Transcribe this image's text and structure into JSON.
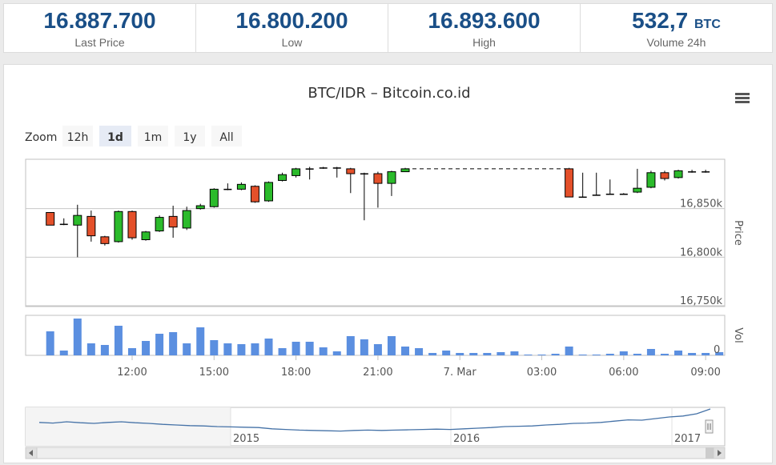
{
  "stats": [
    {
      "value": "16.887.700",
      "unit": "",
      "label": "Last Price"
    },
    {
      "value": "16.800.200",
      "unit": "",
      "label": "Low"
    },
    {
      "value": "16.893.600",
      "unit": "",
      "label": "High"
    },
    {
      "value": "532,7",
      "unit": "BTC",
      "label": "Volume 24h"
    }
  ],
  "chart": {
    "title": "BTC/IDR – Bitcoin.co.id",
    "zoom_label": "Zoom",
    "zoom_buttons": [
      "12h",
      "1d",
      "1m",
      "1y",
      "All"
    ],
    "zoom_selected": "1d",
    "price_axis_title": "Price",
    "vol_axis_title": "Vol"
  },
  "icons": {
    "menu": "hamburger-menu-icon",
    "scroll_left": "arrow-left-icon",
    "scroll_right": "arrow-right-icon"
  },
  "colors": {
    "up": "#2bbb2b",
    "down": "#e4502a",
    "accent": "#1a4f87",
    "navigator_line": "#4572a7"
  },
  "chart_data": {
    "type": "candlestick",
    "price": {
      "yticks": [
        "16,850k",
        "16,800k",
        "16,750k"
      ],
      "ytick_values": [
        16850,
        16800,
        16750
      ],
      "ylim": [
        16750,
        16900
      ],
      "grid": true,
      "candles": [
        {
          "t": 9.0,
          "o": 16846,
          "c": 16833,
          "h": 16846,
          "l": 16833
        },
        {
          "t": 9.5,
          "o": 16834,
          "c": 16834,
          "h": 16840,
          "l": 16833
        },
        {
          "t": 10.0,
          "o": 16833,
          "c": 16843,
          "h": 16854,
          "l": 16800
        },
        {
          "t": 10.5,
          "o": 16842,
          "c": 16822,
          "h": 16848,
          "l": 16816
        },
        {
          "t": 11.0,
          "o": 16821,
          "c": 16814,
          "h": 16822,
          "l": 16812
        },
        {
          "t": 11.5,
          "o": 16816,
          "c": 16847,
          "h": 16848,
          "l": 16815
        },
        {
          "t": 12.0,
          "o": 16847,
          "c": 16820,
          "h": 16848,
          "l": 16818
        },
        {
          "t": 12.5,
          "o": 16818,
          "c": 16826,
          "h": 16827,
          "l": 16817
        },
        {
          "t": 13.0,
          "o": 16827,
          "c": 16841,
          "h": 16843,
          "l": 16826
        },
        {
          "t": 13.5,
          "o": 16842,
          "c": 16831,
          "h": 16853,
          "l": 16820
        },
        {
          "t": 14.0,
          "o": 16830,
          "c": 16848,
          "h": 16852,
          "l": 16828
        },
        {
          "t": 14.5,
          "o": 16850,
          "c": 16853,
          "h": 16855,
          "l": 16849
        },
        {
          "t": 15.0,
          "o": 16852,
          "c": 16870,
          "h": 16871,
          "l": 16851
        },
        {
          "t": 15.5,
          "o": 16870,
          "c": 16870,
          "h": 16876,
          "l": 16869
        },
        {
          "t": 16.0,
          "o": 16870,
          "c": 16875,
          "h": 16877,
          "l": 16869
        },
        {
          "t": 16.5,
          "o": 16873,
          "c": 16857,
          "h": 16874,
          "l": 16856
        },
        {
          "t": 17.0,
          "o": 16858,
          "c": 16877,
          "h": 16878,
          "l": 16857
        },
        {
          "t": 17.5,
          "o": 16879,
          "c": 16885,
          "h": 16887,
          "l": 16878
        },
        {
          "t": 18.0,
          "o": 16884,
          "c": 16891,
          "h": 16892,
          "l": 16882
        },
        {
          "t": 18.5,
          "o": 16891,
          "c": 16891,
          "h": 16893,
          "l": 16880
        },
        {
          "t": 19.0,
          "o": 16892,
          "c": 16892,
          "h": 16893,
          "l": 16891
        },
        {
          "t": 19.5,
          "o": 16892,
          "c": 16892,
          "h": 16893,
          "l": 16882
        },
        {
          "t": 20.0,
          "o": 16891,
          "c": 16886,
          "h": 16892,
          "l": 16866
        },
        {
          "t": 20.5,
          "o": 16886,
          "c": 16886,
          "h": 16887,
          "l": 16838
        },
        {
          "t": 21.0,
          "o": 16886,
          "c": 16876,
          "h": 16888,
          "l": 16851
        },
        {
          "t": 21.5,
          "o": 16876,
          "c": 16888,
          "h": 16889,
          "l": 16863
        },
        {
          "t": 22.0,
          "o": 16888,
          "c": 16891,
          "h": 16892,
          "l": 16888
        },
        {
          "t": 28.0,
          "o": 16891,
          "c": 16862,
          "h": 16892,
          "l": 16862
        },
        {
          "t": 28.5,
          "o": 16862,
          "c": 16862,
          "h": 16887,
          "l": 16862
        },
        {
          "t": 29.0,
          "o": 16864,
          "c": 16864,
          "h": 16887,
          "l": 16864
        },
        {
          "t": 29.5,
          "o": 16865,
          "c": 16865,
          "h": 16880,
          "l": 16865
        },
        {
          "t": 30.0,
          "o": 16865,
          "c": 16865,
          "h": 16866,
          "l": 16865
        },
        {
          "t": 30.5,
          "o": 16867,
          "c": 16871,
          "h": 16891,
          "l": 16866
        },
        {
          "t": 31.0,
          "o": 16872,
          "c": 16887,
          "h": 16889,
          "l": 16871
        },
        {
          "t": 31.5,
          "o": 16887,
          "c": 16881,
          "h": 16889,
          "l": 16879
        },
        {
          "t": 32.0,
          "o": 16882,
          "c": 16889,
          "h": 16890,
          "l": 16881
        },
        {
          "t": 32.5,
          "o": 16888,
          "c": 16888,
          "h": 16890,
          "l": 16887
        },
        {
          "t": 33.0,
          "o": 16888,
          "c": 16888,
          "h": 16890,
          "l": 16887
        }
      ],
      "flat_line": {
        "from": 22.0,
        "to": 28.0,
        "value": 16891
      }
    },
    "volume": {
      "ytick": "0",
      "ylim": [
        0,
        50
      ],
      "bars": [
        {
          "t": 9.0,
          "v": 30
        },
        {
          "t": 9.5,
          "v": 6
        },
        {
          "t": 10.0,
          "v": 46
        },
        {
          "t": 10.5,
          "v": 15
        },
        {
          "t": 11.0,
          "v": 13
        },
        {
          "t": 11.5,
          "v": 37
        },
        {
          "t": 12.0,
          "v": 9
        },
        {
          "t": 12.5,
          "v": 18
        },
        {
          "t": 13.0,
          "v": 27
        },
        {
          "t": 13.5,
          "v": 29
        },
        {
          "t": 14.0,
          "v": 15
        },
        {
          "t": 14.5,
          "v": 35
        },
        {
          "t": 15.0,
          "v": 19
        },
        {
          "t": 15.5,
          "v": 15
        },
        {
          "t": 16.0,
          "v": 14
        },
        {
          "t": 16.5,
          "v": 15
        },
        {
          "t": 17.0,
          "v": 21
        },
        {
          "t": 17.5,
          "v": 9
        },
        {
          "t": 18.0,
          "v": 17
        },
        {
          "t": 18.5,
          "v": 17
        },
        {
          "t": 19.0,
          "v": 10
        },
        {
          "t": 19.5,
          "v": 5
        },
        {
          "t": 20.0,
          "v": 24
        },
        {
          "t": 20.5,
          "v": 20
        },
        {
          "t": 21.0,
          "v": 14
        },
        {
          "t": 21.5,
          "v": 24
        },
        {
          "t": 22.0,
          "v": 11
        },
        {
          "t": 22.5,
          "v": 9
        },
        {
          "t": 23.0,
          "v": 3
        },
        {
          "t": 23.5,
          "v": 6
        },
        {
          "t": 24.0,
          "v": 3
        },
        {
          "t": 24.5,
          "v": 3
        },
        {
          "t": 25.0,
          "v": 3
        },
        {
          "t": 25.5,
          "v": 4
        },
        {
          "t": 26.0,
          "v": 5
        },
        {
          "t": 26.5,
          "v": 1
        },
        {
          "t": 27.0,
          "v": 1
        },
        {
          "t": 27.5,
          "v": 2
        },
        {
          "t": 28.0,
          "v": 11
        },
        {
          "t": 28.5,
          "v": 1
        },
        {
          "t": 29.0,
          "v": 1
        },
        {
          "t": 29.5,
          "v": 2
        },
        {
          "t": 30.0,
          "v": 5
        },
        {
          "t": 30.5,
          "v": 2
        },
        {
          "t": 31.0,
          "v": 8
        },
        {
          "t": 31.5,
          "v": 2
        },
        {
          "t": 32.0,
          "v": 6
        },
        {
          "t": 32.5,
          "v": 3
        },
        {
          "t": 33.0,
          "v": 3
        },
        {
          "t": 33.5,
          "v": 4
        }
      ]
    },
    "xaxis": {
      "ticks": [
        {
          "t": 12,
          "label": "12:00"
        },
        {
          "t": 15,
          "label": "15:00"
        },
        {
          "t": 18,
          "label": "18:00"
        },
        {
          "t": 21,
          "label": "21:00"
        },
        {
          "t": 24,
          "label": "7. Mar"
        },
        {
          "t": 27,
          "label": "03:00"
        },
        {
          "t": 30,
          "label": "06:00"
        },
        {
          "t": 33,
          "label": "09:00"
        }
      ],
      "range": [
        8.1,
        33.7
      ]
    },
    "navigator": {
      "labels": [
        "2015",
        "2016",
        "2017"
      ],
      "series": [
        0.58,
        0.56,
        0.6,
        0.57,
        0.55,
        0.58,
        0.6,
        0.57,
        0.55,
        0.52,
        0.5,
        0.48,
        0.47,
        0.45,
        0.44,
        0.43,
        0.42,
        0.38,
        0.36,
        0.34,
        0.33,
        0.32,
        0.31,
        0.33,
        0.34,
        0.33,
        0.34,
        0.35,
        0.36,
        0.37,
        0.36,
        0.38,
        0.4,
        0.42,
        0.45,
        0.46,
        0.47,
        0.5,
        0.52,
        0.55,
        0.56,
        0.58,
        0.62,
        0.66,
        0.65,
        0.7,
        0.75,
        0.78,
        0.85,
        1.0
      ]
    }
  }
}
